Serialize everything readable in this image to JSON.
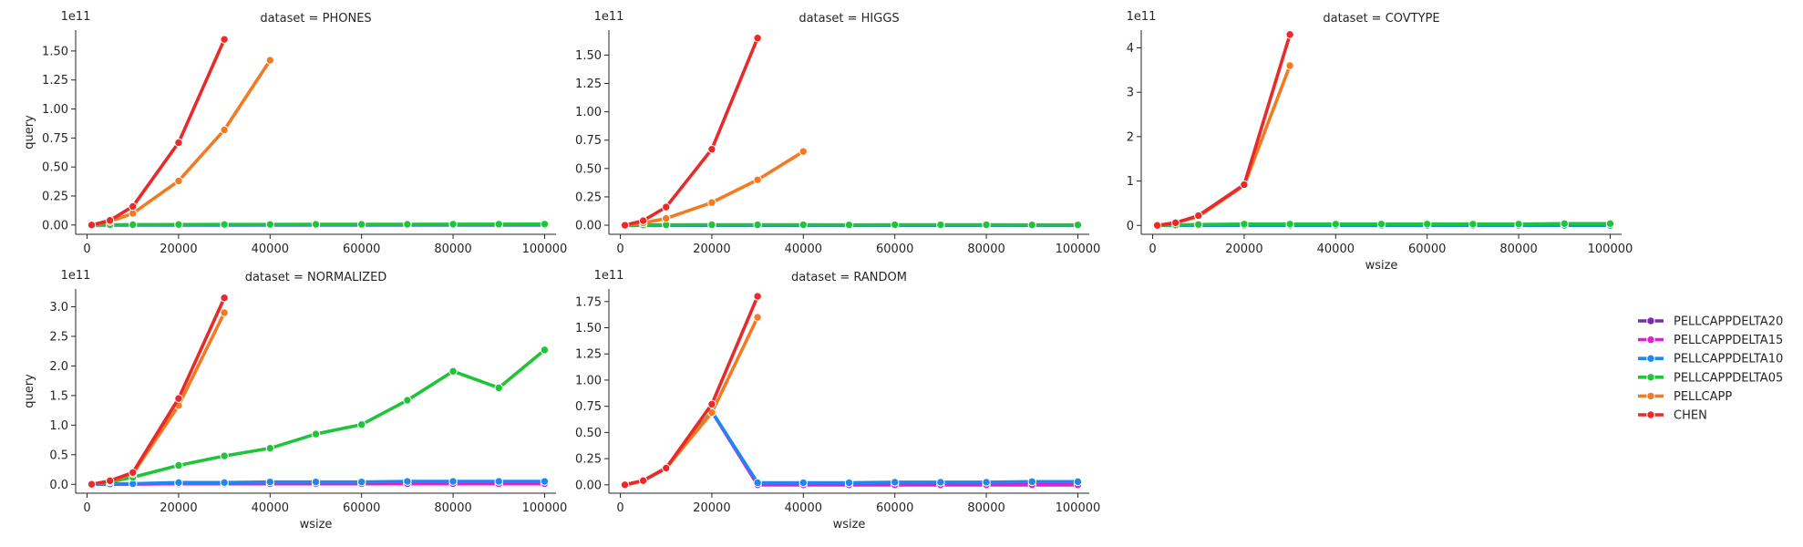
{
  "chart_data": {
    "type": "line",
    "xlabel": "wsize",
    "ylabel": "query",
    "legend": {
      "placement": "right",
      "entries": [
        {
          "name": "PELLCAPPDELTA20",
          "color": "#7b2ca8"
        },
        {
          "name": "PELLCAPPDELTA15",
          "color": "#e81cd8"
        },
        {
          "name": "PELLCAPPDELTA10",
          "color": "#1f87f0"
        },
        {
          "name": "PELLCAPPDELTA05",
          "color": "#1fc43a"
        },
        {
          "name": "PELLCAPP",
          "color": "#f47a22"
        },
        {
          "name": "CHEN",
          "color": "#e82a2a"
        }
      ]
    },
    "panels": [
      {
        "title": "dataset = PHONES",
        "multiplier": "1e11",
        "xlim": [
          -2500,
          102500
        ],
        "ylim": [
          -0.08,
          1.68
        ],
        "xticks": [
          0,
          20000,
          40000,
          60000,
          80000,
          100000
        ],
        "yticks": [
          0,
          0.25,
          0.5,
          0.75,
          1.0,
          1.25,
          1.5
        ],
        "ytick_labels": [
          "0.00",
          "0.25",
          "0.50",
          "0.75",
          "1.00",
          "1.25",
          "1.50"
        ],
        "show_xlabel": false,
        "show_ylabel": true,
        "series": [
          {
            "name": "PELLCAPPDELTA20",
            "x": [
              1000,
              5000,
              10000,
              20000,
              30000,
              40000,
              50000,
              60000,
              70000,
              80000,
              90000,
              100000
            ],
            "y": [
              0,
              0,
              0,
              0,
              0,
              0,
              0,
              0,
              0,
              0,
              0,
              0
            ]
          },
          {
            "name": "PELLCAPPDELTA15",
            "x": [
              1000,
              5000,
              10000,
              20000,
              30000,
              40000,
              50000,
              60000,
              70000,
              80000,
              90000,
              100000
            ],
            "y": [
              0,
              0,
              0,
              0,
              0,
              0,
              0,
              0,
              0,
              0,
              0,
              0
            ]
          },
          {
            "name": "PELLCAPPDELTA10",
            "x": [
              1000,
              5000,
              10000,
              20000,
              30000,
              40000,
              50000,
              60000,
              70000,
              80000,
              90000,
              100000
            ],
            "y": [
              0,
              0,
              0,
              0,
              0,
              0.001,
              0.001,
              0.001,
              0.001,
              0.001,
              0.001,
              0.001
            ]
          },
          {
            "name": "PELLCAPPDELTA05",
            "x": [
              1000,
              5000,
              10000,
              20000,
              30000,
              40000,
              50000,
              60000,
              70000,
              80000,
              90000,
              100000
            ],
            "y": [
              0,
              0.002,
              0.003,
              0.004,
              0.005,
              0.005,
              0.006,
              0.006,
              0.006,
              0.007,
              0.007,
              0.008
            ]
          },
          {
            "name": "PELLCAPP",
            "x": [
              1000,
              5000,
              10000,
              20000,
              30000,
              40000
            ],
            "y": [
              0,
              0.03,
              0.1,
              0.38,
              0.82,
              1.42
            ]
          },
          {
            "name": "CHEN",
            "x": [
              1000,
              5000,
              10000,
              20000,
              30000
            ],
            "y": [
              0,
              0.04,
              0.16,
              0.71,
              1.6
            ]
          }
        ]
      },
      {
        "title": "dataset = HIGGS",
        "multiplier": "1e11",
        "xlim": [
          -2500,
          102500
        ],
        "ylim": [
          -0.08,
          1.72
        ],
        "xticks": [
          0,
          20000,
          40000,
          60000,
          80000,
          100000
        ],
        "yticks": [
          0,
          0.25,
          0.5,
          0.75,
          1.0,
          1.25,
          1.5
        ],
        "ytick_labels": [
          "0.00",
          "0.25",
          "0.50",
          "0.75",
          "1.00",
          "1.25",
          "1.50"
        ],
        "show_xlabel": false,
        "show_ylabel": false,
        "series": [
          {
            "name": "PELLCAPPDELTA20",
            "x": [
              1000,
              5000,
              10000,
              20000,
              30000,
              40000,
              50000,
              60000,
              70000,
              80000,
              90000,
              100000
            ],
            "y": [
              0,
              0,
              0,
              0,
              0,
              0,
              0,
              0,
              0,
              0,
              0,
              0
            ]
          },
          {
            "name": "PELLCAPPDELTA15",
            "x": [
              1000,
              5000,
              10000,
              20000,
              30000,
              40000,
              50000,
              60000,
              70000,
              80000,
              90000,
              100000
            ],
            "y": [
              0,
              0,
              0,
              0,
              0,
              0,
              0,
              0,
              0,
              0,
              0,
              0
            ]
          },
          {
            "name": "PELLCAPPDELTA10",
            "x": [
              1000,
              5000,
              10000,
              20000,
              30000,
              40000,
              50000,
              60000,
              70000,
              80000,
              90000,
              100000
            ],
            "y": [
              0,
              0,
              0,
              0,
              0,
              0,
              0,
              0,
              0,
              0,
              0,
              0
            ]
          },
          {
            "name": "PELLCAPPDELTA05",
            "x": [
              1000,
              5000,
              10000,
              20000,
              30000,
              40000,
              50000,
              60000,
              70000,
              80000,
              90000,
              100000
            ],
            "y": [
              0,
              0.002,
              0.003,
              0.004,
              0.004,
              0.004,
              0.003,
              0.004,
              0.004,
              0.004,
              0.003,
              0.003
            ]
          },
          {
            "name": "PELLCAPP",
            "x": [
              1000,
              5000,
              10000,
              20000,
              30000,
              40000
            ],
            "y": [
              0,
              0.02,
              0.06,
              0.2,
              0.4,
              0.65
            ]
          },
          {
            "name": "CHEN",
            "x": [
              1000,
              5000,
              10000,
              20000,
              30000
            ],
            "y": [
              0,
              0.04,
              0.16,
              0.67,
              1.65
            ]
          }
        ]
      },
      {
        "title": "dataset = COVTYPE",
        "multiplier": "1e11",
        "xlim": [
          -2500,
          102500
        ],
        "ylim": [
          -0.2,
          4.4
        ],
        "xticks": [
          0,
          20000,
          40000,
          60000,
          80000,
          100000
        ],
        "yticks": [
          0,
          1,
          2,
          3,
          4
        ],
        "ytick_labels": [
          "0",
          "1",
          "2",
          "3",
          "4"
        ],
        "show_xlabel": true,
        "show_ylabel": false,
        "series": [
          {
            "name": "PELLCAPPDELTA20",
            "x": [
              1000,
              5000,
              10000,
              20000,
              30000,
              40000,
              50000,
              60000,
              70000,
              80000,
              90000,
              100000
            ],
            "y": [
              0,
              0,
              0,
              0,
              0,
              0,
              0,
              0,
              0,
              0,
              0,
              0
            ]
          },
          {
            "name": "PELLCAPPDELTA15",
            "x": [
              1000,
              5000,
              10000,
              20000,
              30000,
              40000,
              50000,
              60000,
              70000,
              80000,
              90000,
              100000
            ],
            "y": [
              0,
              0,
              0,
              0,
              0,
              0,
              0,
              0,
              0,
              0,
              0,
              0
            ]
          },
          {
            "name": "PELLCAPPDELTA10",
            "x": [
              1000,
              5000,
              10000,
              20000,
              30000,
              40000,
              50000,
              60000,
              70000,
              80000,
              90000,
              100000
            ],
            "y": [
              0,
              0,
              0,
              0,
              0,
              0,
              0,
              0,
              0,
              0,
              0,
              0
            ]
          },
          {
            "name": "PELLCAPPDELTA05",
            "x": [
              1000,
              5000,
              10000,
              20000,
              30000,
              40000,
              50000,
              60000,
              70000,
              80000,
              90000,
              100000
            ],
            "y": [
              0,
              0.01,
              0.02,
              0.03,
              0.03,
              0.03,
              0.03,
              0.03,
              0.03,
              0.03,
              0.04,
              0.04
            ]
          },
          {
            "name": "PELLCAPP",
            "x": [
              1000,
              5000,
              10000,
              20000,
              30000
            ],
            "y": [
              0,
              0.06,
              0.2,
              0.9,
              3.6
            ]
          },
          {
            "name": "CHEN",
            "x": [
              1000,
              5000,
              10000,
              20000,
              30000
            ],
            "y": [
              0,
              0.06,
              0.22,
              0.92,
              4.3
            ]
          }
        ]
      },
      {
        "title": "dataset = NORMALIZED",
        "multiplier": "1e11",
        "xlim": [
          -2500,
          102500
        ],
        "ylim": [
          -0.15,
          3.3
        ],
        "xticks": [
          0,
          20000,
          40000,
          60000,
          80000,
          100000
        ],
        "yticks": [
          0,
          0.5,
          1.0,
          1.5,
          2.0,
          2.5,
          3.0
        ],
        "ytick_labels": [
          "0.0",
          "0.5",
          "1.0",
          "1.5",
          "2.0",
          "2.5",
          "3.0"
        ],
        "show_xlabel": true,
        "show_ylabel": true,
        "series": [
          {
            "name": "PELLCAPPDELTA20",
            "x": [
              1000,
              5000,
              10000,
              20000,
              30000,
              40000,
              50000,
              60000,
              70000,
              80000,
              90000,
              100000
            ],
            "y": [
              0,
              0,
              0.005,
              0.01,
              0.01,
              0.01,
              0.01,
              0.01,
              0.01,
              0.01,
              0.01,
              0.01
            ]
          },
          {
            "name": "PELLCAPPDELTA15",
            "x": [
              1000,
              5000,
              10000,
              20000,
              30000,
              40000,
              50000,
              60000,
              70000,
              80000,
              90000,
              100000
            ],
            "y": [
              0,
              0.002,
              0.005,
              0.01,
              0.01,
              0.01,
              0.01,
              0.01,
              0.01,
              0.01,
              0.01,
              0.01
            ]
          },
          {
            "name": "PELLCAPPDELTA10",
            "x": [
              1000,
              5000,
              10000,
              20000,
              30000,
              40000,
              50000,
              60000,
              70000,
              80000,
              90000,
              100000
            ],
            "y": [
              0,
              0.005,
              0.01,
              0.03,
              0.03,
              0.04,
              0.04,
              0.04,
              0.05,
              0.05,
              0.05,
              0.05
            ]
          },
          {
            "name": "PELLCAPPDELTA05",
            "x": [
              1000,
              5000,
              10000,
              20000,
              30000,
              40000,
              50000,
              60000,
              70000,
              80000,
              90000,
              100000
            ],
            "y": [
              0,
              0.04,
              0.12,
              0.32,
              0.48,
              0.61,
              0.85,
              1.01,
              1.42,
              1.91,
              1.63,
              2.27
            ]
          },
          {
            "name": "PELLCAPP",
            "x": [
              1000,
              5000,
              10000,
              20000,
              30000
            ],
            "y": [
              0,
              0.05,
              0.18,
              1.33,
              2.9
            ]
          },
          {
            "name": "CHEN",
            "x": [
              1000,
              5000,
              10000,
              20000,
              30000
            ],
            "y": [
              0,
              0.06,
              0.2,
              1.45,
              3.15
            ]
          }
        ]
      },
      {
        "title": "dataset = RANDOM",
        "multiplier": "1e11",
        "xlim": [
          -2500,
          102500
        ],
        "ylim": [
          -0.08,
          1.87
        ],
        "xticks": [
          0,
          20000,
          40000,
          60000,
          80000,
          100000
        ],
        "yticks": [
          0,
          0.25,
          0.5,
          0.75,
          1.0,
          1.25,
          1.5,
          1.75
        ],
        "ytick_labels": [
          "0.00",
          "0.25",
          "0.50",
          "0.75",
          "1.00",
          "1.25",
          "1.50",
          "1.75"
        ],
        "show_xlabel": true,
        "show_ylabel": false,
        "series": [
          {
            "name": "PELLCAPPDELTA20",
            "x": [
              1000,
              5000,
              10000,
              20000,
              30000,
              40000,
              50000,
              60000,
              70000,
              80000,
              90000,
              100000
            ],
            "y": [
              0,
              0.04,
              0.16,
              0.7,
              0,
              0,
              0,
              0,
              0,
              0,
              0,
              0
            ]
          },
          {
            "name": "PELLCAPPDELTA15",
            "x": [
              1000,
              5000,
              10000,
              20000,
              30000,
              40000,
              50000,
              60000,
              70000,
              80000,
              90000,
              100000
            ],
            "y": [
              0,
              0.04,
              0.16,
              0.7,
              0,
              0,
              0,
              0,
              0,
              0,
              0,
              0
            ]
          },
          {
            "name": "PELLCAPPDELTA10",
            "x": [
              1000,
              5000,
              10000,
              20000,
              30000,
              40000,
              50000,
              60000,
              70000,
              80000,
              90000,
              100000
            ],
            "y": [
              0,
              0.04,
              0.16,
              0.7,
              0.02,
              0.02,
              0.02,
              0.025,
              0.025,
              0.025,
              0.03,
              0.03
            ]
          },
          {
            "name": "PELLCAPPDELTA05",
            "x": [
              1000,
              5000,
              10000,
              20000
            ],
            "y": [
              0,
              0.04,
              0.16,
              0.7
            ]
          },
          {
            "name": "PELLCAPP",
            "x": [
              1000,
              5000,
              10000,
              20000,
              30000
            ],
            "y": [
              0,
              0.04,
              0.16,
              0.69,
              1.6
            ]
          },
          {
            "name": "CHEN",
            "x": [
              1000,
              5000,
              10000,
              20000,
              30000
            ],
            "y": [
              0,
              0.04,
              0.16,
              0.77,
              1.8
            ]
          }
        ]
      }
    ]
  }
}
